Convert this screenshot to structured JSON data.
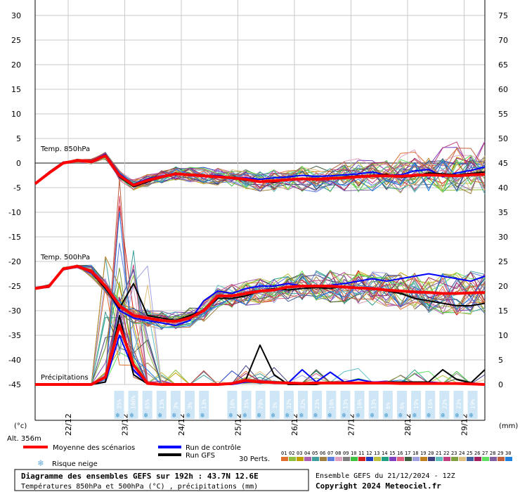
{
  "title_box": {
    "line1": "Diagramme des ensembles GEFS sur 192h : 43.7N 12.6E",
    "line2": "Températures 850hPa et 500hPa (°C) , précipitations (mm)"
  },
  "run_info": "Ensemble GEFS du 21/12/2024 - 12Z",
  "copyright": "Copyright 2024 Meteociel.fr",
  "left_unit": "(°c)",
  "right_unit": "(mm)",
  "altitude": "Alt. 356m",
  "labels": {
    "t850": "Temp. 850hPa",
    "t500": "Temp. 500hPa",
    "precip": "Précipitations"
  },
  "legend": {
    "mean": "Moyenne des scénarios",
    "control": "Run de contrôle",
    "gfs": "Run GFS",
    "snow": "Risque neige",
    "perts": "30 Perts.",
    "pert_ids": [
      "01",
      "02",
      "03",
      "04",
      "05",
      "06",
      "07",
      "08",
      "09",
      "10",
      "11",
      "12",
      "13",
      "14",
      "15",
      "16",
      "17",
      "18",
      "19",
      "20",
      "21",
      "22",
      "23",
      "24",
      "25",
      "26",
      "27",
      "28",
      "29",
      "30"
    ],
    "pert_colors": [
      "#e07030",
      "#90c040",
      "#c0a000",
      "#b060b0",
      "#40a0a0",
      "#a08040",
      "#6080e0",
      "#e0a0c0",
      "#808080",
      "#40c040",
      "#d02020",
      "#2040c0",
      "#c0c040",
      "#20a080",
      "#8040c0",
      "#e06080",
      "#406040",
      "#a0a0e0",
      "#c08020",
      "#404080",
      "#60c0c0",
      "#c04080",
      "#80a040",
      "#e0c080",
      "#4060a0",
      "#a02060",
      "#60e060",
      "#8060a0",
      "#c06040",
      "#2080e0"
    ]
  },
  "colors": {
    "mean": "#ff0000",
    "control": "#0000ff",
    "gfs": "#000000",
    "snow": "#99ccee"
  },
  "chart_data": {
    "type": "line",
    "x_dates": [
      "22/12",
      "23/12",
      "24/12",
      "25/12",
      "26/12",
      "27/12",
      "28/12",
      "29/12"
    ],
    "left_axis": {
      "ticks": [
        30,
        25,
        20,
        15,
        10,
        5,
        0,
        -5,
        -10,
        -15,
        -20,
        -25,
        -30,
        -35,
        -40,
        -45
      ],
      "range": [
        -45,
        30
      ]
    },
    "right_axis": {
      "ticks": [
        75,
        70,
        65,
        60,
        55,
        50,
        45,
        40,
        35,
        30,
        25,
        20,
        15,
        10,
        5,
        0
      ],
      "range": [
        0,
        75
      ]
    },
    "step_hours": 6,
    "t850_mean": [
      -4.2,
      -2,
      0,
      0.5,
      0.3,
      1.5,
      -2.5,
      -4.5,
      -3.5,
      -2.8,
      -2.2,
      -2.4,
      -2.6,
      -2.8,
      -3,
      -3.3,
      -3.8,
      -3.6,
      -3.4,
      -3.2,
      -3.3,
      -3.1,
      -3,
      -2.8,
      -2.6,
      -2.6,
      -2.7,
      -2.5,
      -2.4,
      -2.5,
      -2.6,
      -2.4,
      -2.3
    ],
    "t850_control": [
      -4.2,
      -2,
      0,
      0.6,
      0.4,
      1.8,
      -2.2,
      -4.3,
      -3.2,
      -2.6,
      -2.4,
      -2.3,
      -2.6,
      -2.5,
      -3,
      -3,
      -3.3,
      -3,
      -2.8,
      -2.5,
      -2.7,
      -2.6,
      -2.4,
      -2.2,
      -1.8,
      -2.5,
      -2.4,
      -1.6,
      -1.3,
      -2.8,
      -2,
      -1.5,
      -0.8
    ],
    "t850_gfs": [
      -4.2,
      -1.8,
      0.2,
      0.5,
      0.4,
      1.6,
      -2.8,
      -4.8,
      -3.8,
      -2.9,
      -2,
      -2.6,
      -2.5,
      -2.9,
      -3.1,
      -3.5,
      -3.7,
      -3.9,
      -3.3,
      -3.4,
      -3.1,
      -3.2,
      -2.8,
      -2.6,
      -2.5,
      -2.3,
      -2.9,
      -2.7,
      -2,
      -2.2,
      -2.4,
      -2.1,
      -1.8
    ],
    "t500_mean": [
      -25.5,
      -25,
      -21.5,
      -21,
      -22,
      -25,
      -29,
      -31,
      -31.5,
      -32,
      -32.2,
      -31.5,
      -30,
      -27,
      -27,
      -26.5,
      -26,
      -25.8,
      -25.2,
      -25,
      -25,
      -25,
      -25.2,
      -25.4,
      -25.5,
      -25.8,
      -26,
      -26.2,
      -26.3,
      -26.5,
      -26.5,
      -26.4,
      -26.3
    ],
    "t500_control": [
      -25.5,
      -25,
      -21.5,
      -21.2,
      -22,
      -25,
      -30,
      -31.5,
      -32,
      -32.5,
      -33,
      -32,
      -28,
      -26,
      -26.5,
      -25.5,
      -25,
      -25,
      -24.5,
      -25,
      -25,
      -24.8,
      -24.5,
      -24,
      -23.5,
      -24,
      -23.5,
      -23,
      -22.5,
      -23,
      -23.5,
      -24,
      -23
    ],
    "t500_gfs": [
      -25.5,
      -24.8,
      -21.5,
      -21,
      -22.2,
      -25.5,
      -29.5,
      -24.5,
      -31,
      -31.5,
      -32,
      -31,
      -30,
      -27.5,
      -27.5,
      -27,
      -26,
      -25.5,
      -25.8,
      -25.5,
      -25.3,
      -25.5,
      -25,
      -25.5,
      -25.5,
      -26,
      -26.5,
      -27.5,
      -28,
      -28.5,
      -29,
      -29,
      -28.5
    ],
    "precip_mean_mm": [
      0,
      0,
      0,
      0,
      0,
      1.5,
      12,
      4,
      0.2,
      0,
      0,
      0,
      0,
      0,
      0.2,
      0.8,
      0.5,
      0.4,
      0.3,
      0.2,
      0.3,
      0.3,
      0.3,
      0.3,
      0.3,
      0.3,
      0.2,
      0.2,
      0.2,
      0.2,
      0.2,
      0.1,
      0
    ],
    "precip_control_mm": [
      0,
      0,
      0,
      0,
      0,
      0.5,
      10,
      3,
      0.1,
      0,
      0,
      0,
      0,
      0,
      0,
      0.5,
      0.5,
      0.5,
      0.3,
      3,
      0.5,
      2.5,
      0.5,
      1,
      0.5,
      0.5,
      0.5,
      0.5,
      0.5,
      0.3,
      0.2,
      0.3,
      0
    ],
    "precip_gfs_mm": [
      0,
      0,
      0,
      0,
      0,
      0.5,
      14,
      2,
      0.1,
      0,
      0,
      0,
      0,
      0,
      0.1,
      1,
      8,
      2,
      0,
      0,
      0,
      0.5,
      0.5,
      0.3,
      0.3,
      0.5,
      0.5,
      0.5,
      0.5,
      3,
      1,
      0.3,
      3
    ],
    "snow_risk": [
      {
        "date_index": 0.9,
        "value": "35%"
      },
      {
        "date_index": 1.15,
        "value": "100%"
      },
      {
        "date_index": 1.4,
        "value": "65%"
      },
      {
        "date_index": 1.65,
        "value": "13%"
      },
      {
        "date_index": 1.9,
        "value": "3%"
      },
      {
        "date_index": 2.15,
        "value": "3%"
      },
      {
        "date_index": 2.4,
        "value": "13%"
      },
      {
        "date_index": 2.9,
        "value": "10%"
      },
      {
        "date_index": 3.15,
        "value": "35%"
      },
      {
        "date_index": 3.4,
        "value": "29%"
      },
      {
        "date_index": 3.65,
        "value": "3%"
      },
      {
        "date_index": 3.9,
        "value": "32%"
      },
      {
        "date_index": 4.15,
        "value": "32%"
      },
      {
        "date_index": 4.4,
        "value": "23%"
      },
      {
        "date_index": 4.65,
        "value": "10%"
      },
      {
        "date_index": 4.9,
        "value": "13%"
      },
      {
        "date_index": 5.15,
        "value": "10%"
      },
      {
        "date_index": 5.4,
        "value": "13%"
      },
      {
        "date_index": 5.65,
        "value": "6%"
      },
      {
        "date_index": 5.9,
        "value": "6%"
      },
      {
        "date_index": 6.15,
        "value": "19%"
      },
      {
        "date_index": 6.4,
        "value": "16%"
      },
      {
        "date_index": 6.65,
        "value": "22%"
      },
      {
        "date_index": 6.9,
        "value": "23%"
      },
      {
        "date_index": 7.15,
        "value": "19%"
      }
    ]
  }
}
